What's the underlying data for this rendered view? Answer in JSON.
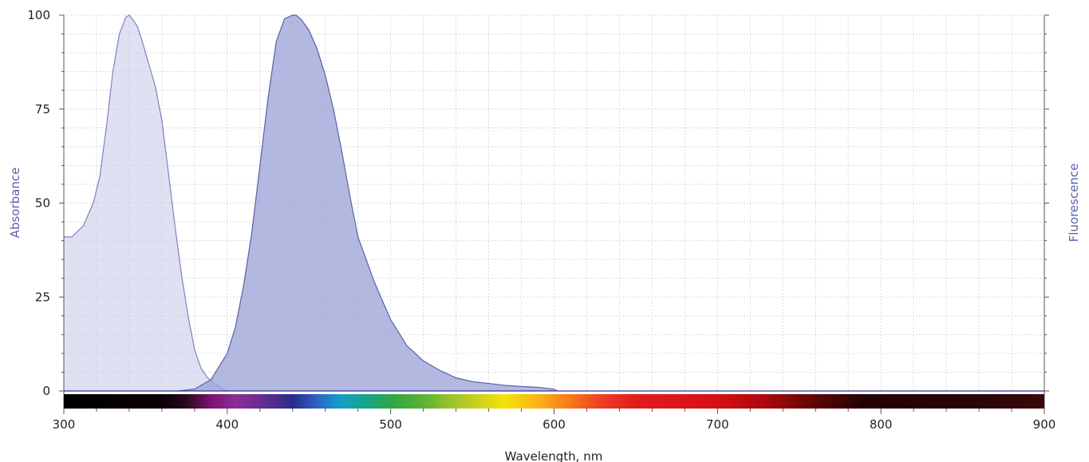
{
  "chart_data": {
    "type": "area",
    "xlabel": "Wavelength, nm",
    "ylabel_left": "Absorbance",
    "ylabel_right": "Fluorescence",
    "xlim": [
      300,
      900
    ],
    "ylim": [
      0,
      100
    ],
    "x_ticks": [
      300,
      400,
      500,
      600,
      700,
      800,
      900
    ],
    "y_ticks": [
      0,
      25,
      50,
      75,
      100
    ],
    "grid": true,
    "color_bar": "visible spectrum",
    "series": [
      {
        "x": [
          300,
          305,
          312,
          318,
          322,
          326,
          330,
          334,
          338,
          340,
          342,
          345,
          348,
          352,
          356,
          360,
          364,
          368,
          372,
          376,
          380,
          384,
          388,
          392,
          396,
          400
        ],
        "y": [
          41,
          41,
          44,
          50,
          57,
          70,
          85,
          95,
          99.5,
          100,
          99,
          97,
          93,
          87,
          81,
          72,
          58,
          44,
          31,
          20,
          11,
          6,
          3.5,
          2,
          0.8,
          0
        ],
        "color": "#c9cdeb",
        "line_color": "#7c83bf"
      },
      {
        "x": [
          370,
          380,
          390,
          400,
          405,
          410,
          415,
          420,
          425,
          430,
          435,
          440,
          442,
          445,
          450,
          455,
          460,
          465,
          470,
          475,
          480,
          490,
          500,
          510,
          520,
          530,
          540,
          550,
          560,
          570,
          580,
          590,
          600,
          602
        ],
        "y": [
          0,
          0.5,
          3,
          10,
          17,
          28,
          42,
          60,
          78,
          93,
          99,
          100,
          100,
          99,
          96,
          91,
          84,
          75,
          64,
          52,
          41,
          29,
          19,
          12,
          8,
          5.5,
          3.5,
          2.5,
          2,
          1.5,
          1.2,
          1,
          0.5,
          0
        ],
        "color": "#98a0d4",
        "line_color": "#5a61a8"
      }
    ]
  },
  "colors": {
    "axis_title": "#5c62ab",
    "grid": "#dadada"
  }
}
